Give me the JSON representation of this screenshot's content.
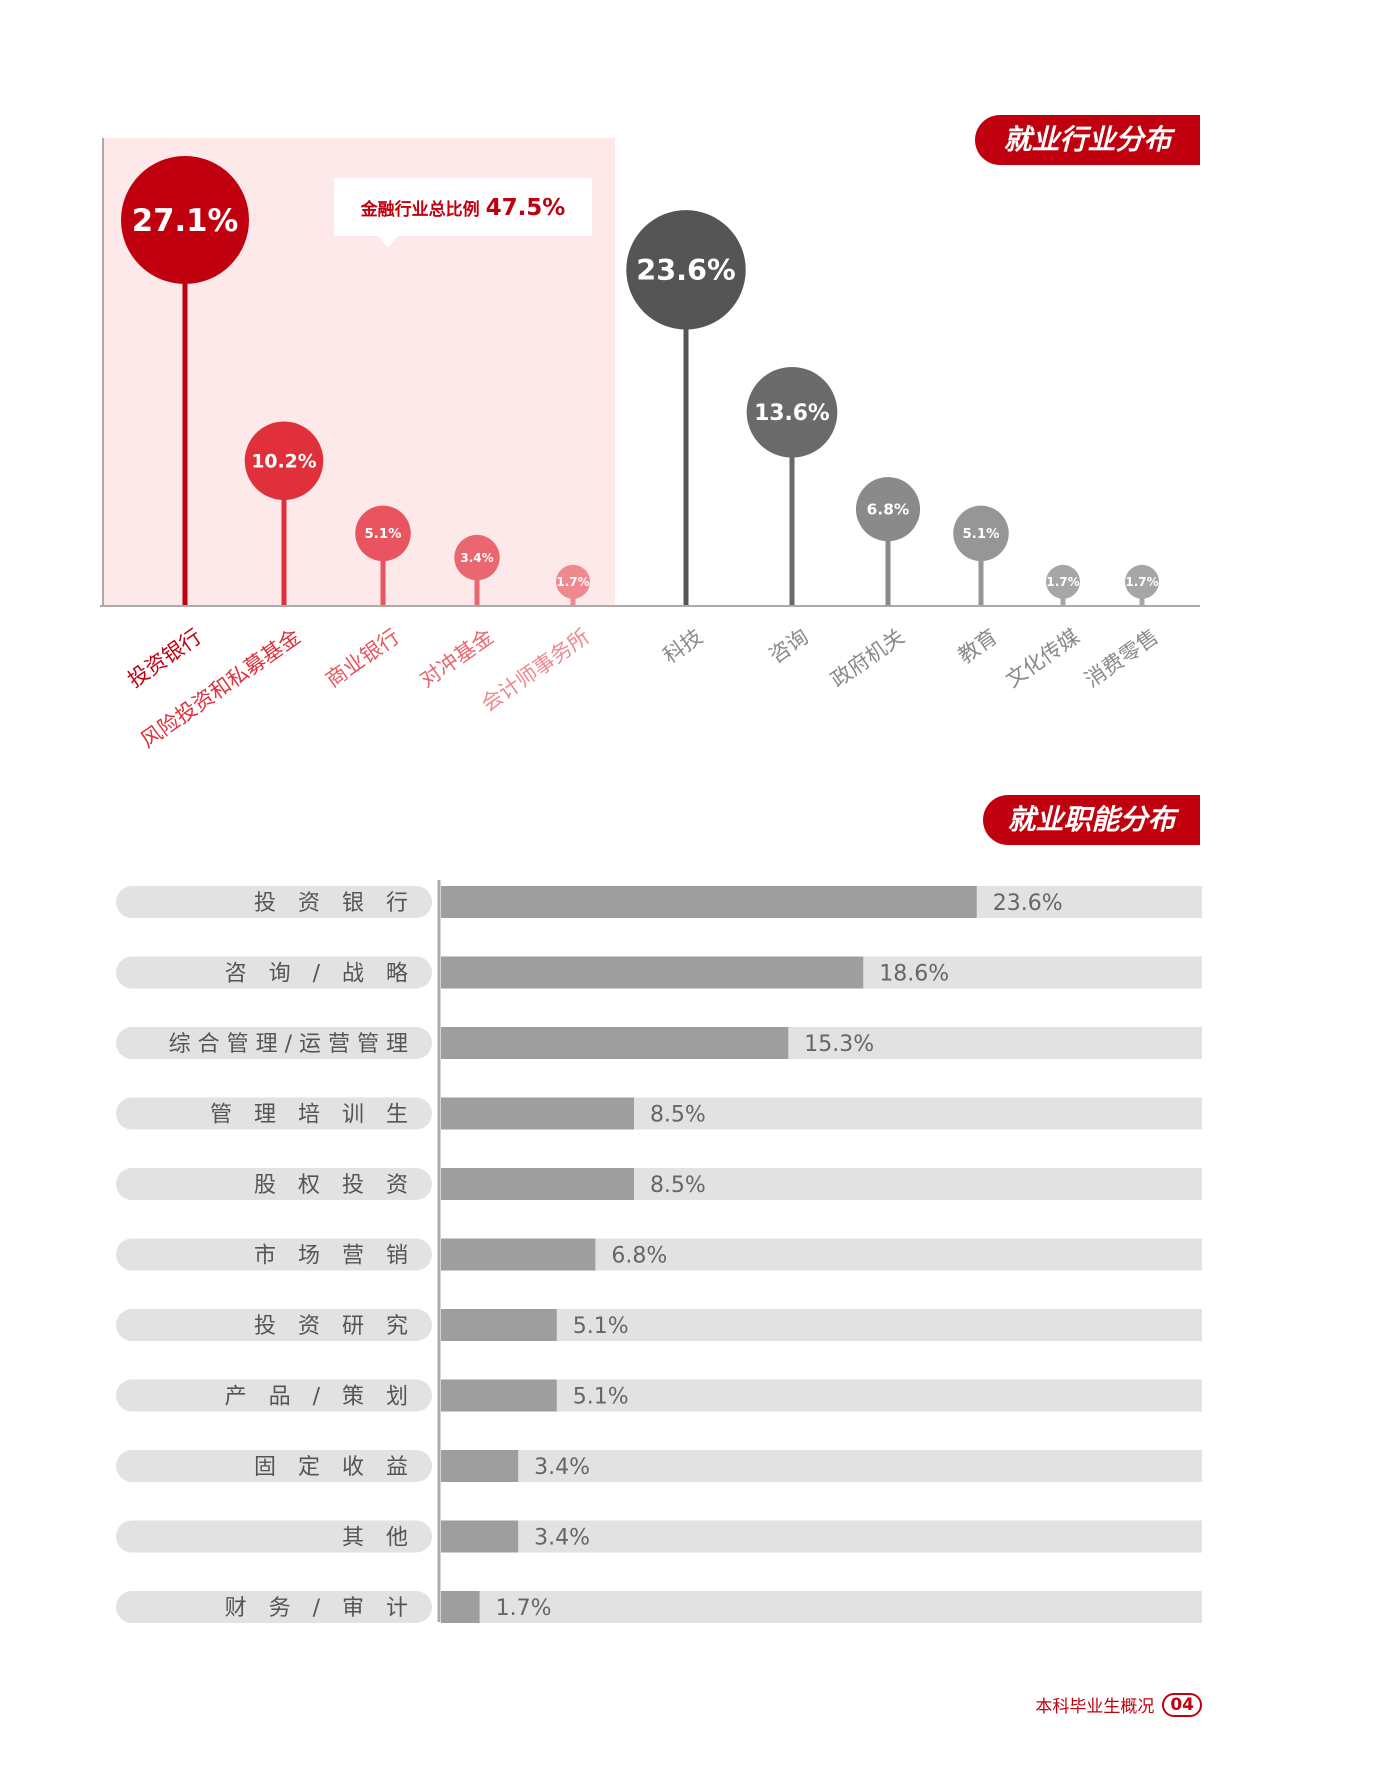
{
  "industry_section": {
    "title": "就业行业分布",
    "callout_label": "金融行业总比例",
    "callout_value": "47.5%"
  },
  "function_section": {
    "title": "就业职能分布"
  },
  "footer": {
    "text": "本科毕业生概况",
    "page": "04"
  },
  "colors": {
    "brand_red": "#c0000e",
    "finance_series": [
      "#c0000e",
      "#e0303c",
      "#e85560",
      "#ea6670",
      "#f08890"
    ],
    "other_series": [
      "#555555",
      "#6a6a6a",
      "#8a8a8a",
      "#969696",
      "#a6a6a6",
      "#a6a6a6"
    ],
    "finance_band": "#fde8ea",
    "bar_fill": "#9e9e9e",
    "bar_track": "#e2e2e2"
  },
  "chart_data": [
    {
      "type": "lollipop",
      "title": "就业行业分布",
      "group_label": "金融行业总比例 47.5%",
      "categories": [
        "投资银行",
        "风险投资和私募基金",
        "商业银行",
        "对冲基金",
        "会计师事务所",
        "科技",
        "咨询",
        "政府机关",
        "教育",
        "文化传媒",
        "消费零售"
      ],
      "values": [
        27.1,
        10.2,
        5.1,
        3.4,
        1.7,
        23.6,
        13.6,
        6.8,
        5.1,
        1.7,
        1.7
      ],
      "labels": [
        "27.1%",
        "10.2%",
        "5.1%",
        "3.4%",
        "1.7%",
        "23.6%",
        "13.6%",
        "6.8%",
        "5.1%",
        "1.7%",
        "1.7%"
      ],
      "finance_group_count": 5,
      "unit": "%"
    },
    {
      "type": "bar",
      "orientation": "horizontal",
      "title": "就业职能分布",
      "categories": [
        "投资银行",
        "咨询/战略",
        "综合管理/运营管理",
        "管理培训生",
        "股权投资",
        "市场营销",
        "投资研究",
        "产品/策划",
        "固定收益",
        "其他",
        "财务/审计"
      ],
      "display_labels": [
        "投　资　银　行",
        "咨　询　/　战　略",
        "综 合 管 理 / 运 营 管 理",
        "管　理　培　训　生",
        "股　权　投　资",
        "市　场　营　销",
        "投　资　研　究",
        "产　品　/　策　划",
        "固　定　收　益",
        "其　他",
        "财　务　/　审　计"
      ],
      "values": [
        23.6,
        18.6,
        15.3,
        8.5,
        8.5,
        6.8,
        5.1,
        5.1,
        3.4,
        3.4,
        1.7
      ],
      "labels": [
        "23.6%",
        "18.6%",
        "15.3%",
        "8.5%",
        "8.5%",
        "6.8%",
        "5.1%",
        "5.1%",
        "3.4%",
        "3.4%",
        "1.7%"
      ],
      "unit": "%"
    }
  ]
}
